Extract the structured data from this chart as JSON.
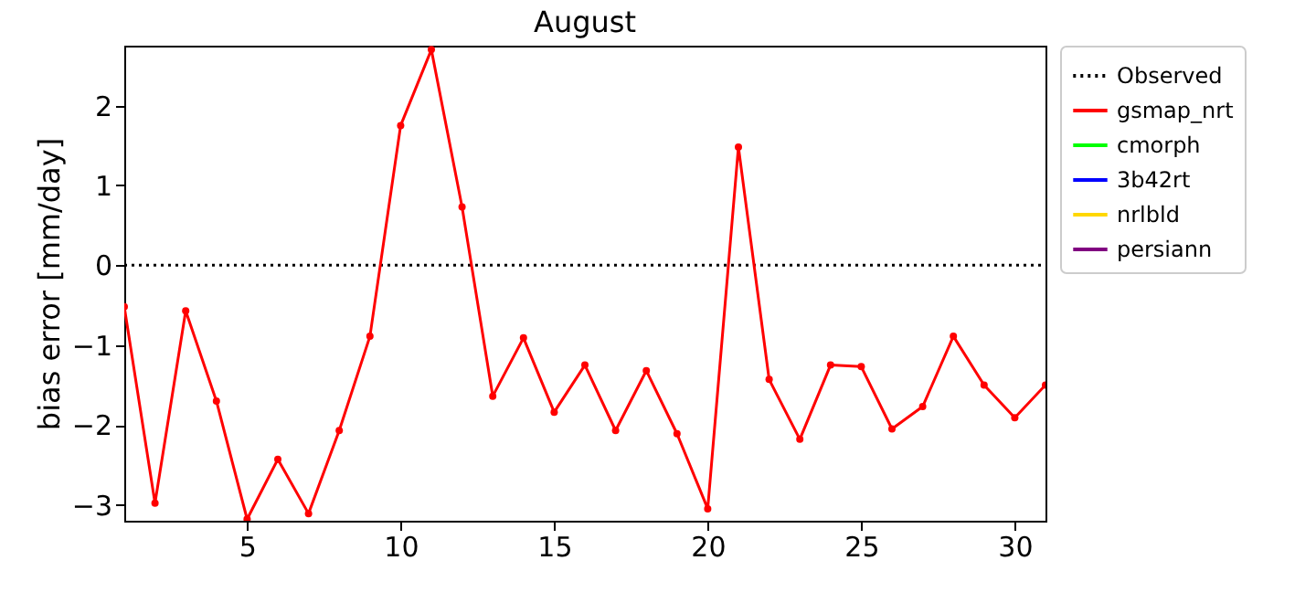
{
  "chart_data": {
    "type": "line",
    "title": "August",
    "ylabel": "bias error [mm/day]",
    "x": [
      1,
      2,
      3,
      4,
      5,
      6,
      7,
      8,
      9,
      10,
      11,
      12,
      13,
      14,
      15,
      16,
      17,
      18,
      19,
      20,
      21,
      22,
      23,
      24,
      25,
      26,
      27,
      28,
      29,
      30,
      31
    ],
    "xlim": [
      1,
      31
    ],
    "xticks": [
      5,
      10,
      15,
      20,
      25,
      30
    ],
    "ylim": [
      -3.2,
      2.75
    ],
    "yticks": [
      -3,
      -2,
      -1,
      0,
      1,
      2
    ],
    "grid": false,
    "legend": "right",
    "marker": "circle",
    "series": [
      {
        "name": "Observed",
        "color": "#000000",
        "line_style": "dotted",
        "marker": "none",
        "values": [
          0,
          0,
          0,
          0,
          0,
          0,
          0,
          0,
          0,
          0,
          0,
          0,
          0,
          0,
          0,
          0,
          0,
          0,
          0,
          0,
          0,
          0,
          0,
          0,
          0,
          0,
          0,
          0,
          0,
          0,
          0
        ]
      },
      {
        "name": "gsmap_nrt",
        "color": "#ff0000",
        "values": [
          -0.52,
          -2.98,
          -0.57,
          -1.7,
          -3.18,
          -2.43,
          -3.11,
          -2.07,
          -0.89,
          1.75,
          2.7,
          0.73,
          -1.64,
          -0.91,
          -1.84,
          -1.25,
          -2.07,
          -1.32,
          -2.11,
          -3.05,
          1.48,
          -1.43,
          -2.18,
          -1.25,
          -1.27,
          -2.05,
          -1.77,
          -0.89,
          -1.5,
          -1.91,
          -1.5
        ]
      },
      {
        "name": "cmorph",
        "color": "#00ff00",
        "values": [
          null,
          null,
          null,
          null,
          null,
          null,
          null,
          null,
          null,
          null,
          null,
          null,
          null,
          null,
          null,
          null,
          null,
          null,
          null,
          null,
          null,
          null,
          null,
          null,
          null,
          null,
          null,
          null,
          null,
          null,
          null
        ]
      },
      {
        "name": "3b42rt",
        "color": "#0000ff",
        "values": [
          null,
          null,
          null,
          null,
          null,
          null,
          null,
          null,
          null,
          null,
          null,
          null,
          null,
          null,
          null,
          null,
          null,
          null,
          null,
          null,
          null,
          null,
          null,
          null,
          null,
          null,
          null,
          null,
          null,
          null,
          null
        ]
      },
      {
        "name": "nrlbld",
        "color": "#ffd700",
        "values": [
          null,
          null,
          null,
          null,
          null,
          null,
          null,
          null,
          null,
          null,
          null,
          null,
          null,
          null,
          null,
          null,
          null,
          null,
          null,
          null,
          null,
          null,
          null,
          null,
          null,
          null,
          null,
          null,
          null,
          null,
          null
        ]
      },
      {
        "name": "persiann",
        "color": "#800080",
        "values": [
          null,
          null,
          null,
          null,
          null,
          null,
          null,
          null,
          null,
          null,
          null,
          null,
          null,
          null,
          null,
          null,
          null,
          null,
          null,
          null,
          null,
          null,
          null,
          null,
          null,
          null,
          null,
          null,
          null,
          null,
          null
        ]
      }
    ]
  }
}
